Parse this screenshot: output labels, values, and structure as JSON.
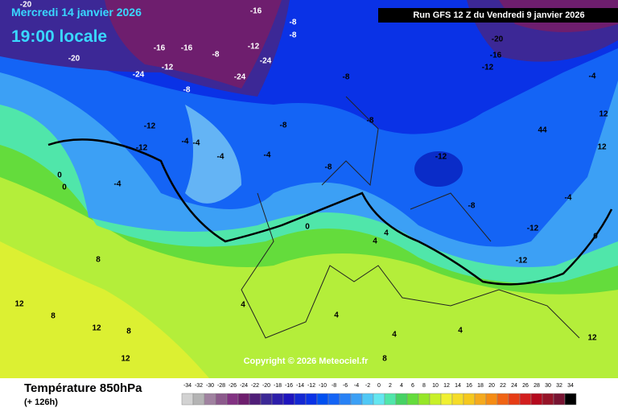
{
  "header": {
    "date": "Mercredi 14 janvier 2026",
    "time": "19:00 locale",
    "run": "Run GFS 12 Z du Vendredi 9 janvier 2026"
  },
  "footer": {
    "title": "Température 850hPa",
    "lead": "(+ 126h)",
    "copyright": "Copyright © 2026 Meteociel.fr"
  },
  "map_labels": [
    "-20",
    "-16",
    "-8",
    "-8",
    "-16",
    "-16",
    "-20",
    "-24",
    "-12",
    "-8",
    "-24",
    "-24",
    "-12",
    "-8",
    "-4",
    "-12",
    "-12",
    "-4",
    "-4",
    "-4",
    "-8",
    "-8",
    "-8",
    "-12",
    "-8",
    "-4",
    "-12",
    "-12",
    "-4",
    "0",
    "0",
    "4",
    "4",
    "8",
    "8",
    "12",
    "12",
    "8",
    "12",
    "4",
    "0",
    "4",
    "4",
    "-20",
    "-16",
    "-12",
    "-8",
    "12",
    "44",
    "12",
    "-4",
    "0",
    "8",
    "12",
    "4"
  ],
  "legend": {
    "ticks": [
      -34,
      -32,
      -30,
      -28,
      -26,
      -24,
      -22,
      -20,
      -18,
      -16,
      -14,
      -12,
      -10,
      -8,
      -6,
      -4,
      -2,
      0,
      2,
      4,
      6,
      8,
      10,
      12,
      14,
      16,
      18,
      20,
      22,
      24,
      26,
      28,
      30,
      32,
      34
    ],
    "colors": [
      "#d2d2d2",
      "#b4b4b4",
      "#a082a0",
      "#8c5a8c",
      "#823282",
      "#6e1e6e",
      "#501e78",
      "#3c2896",
      "#2d1eaa",
      "#1e14be",
      "#1428d2",
      "#0a32e6",
      "#0050f0",
      "#1464f5",
      "#2882f5",
      "#3ca0f5",
      "#50c8f5",
      "#64e6f0",
      "#50e6aa",
      "#46d264",
      "#64dc3c",
      "#96e628",
      "#c8f028",
      "#f0f032",
      "#f5dc28",
      "#f5c81e",
      "#f5aa1e",
      "#f58c14",
      "#f06414",
      "#e63c14",
      "#d21e1e",
      "#b40a1e",
      "#961428",
      "#781432",
      "#000000"
    ]
  }
}
